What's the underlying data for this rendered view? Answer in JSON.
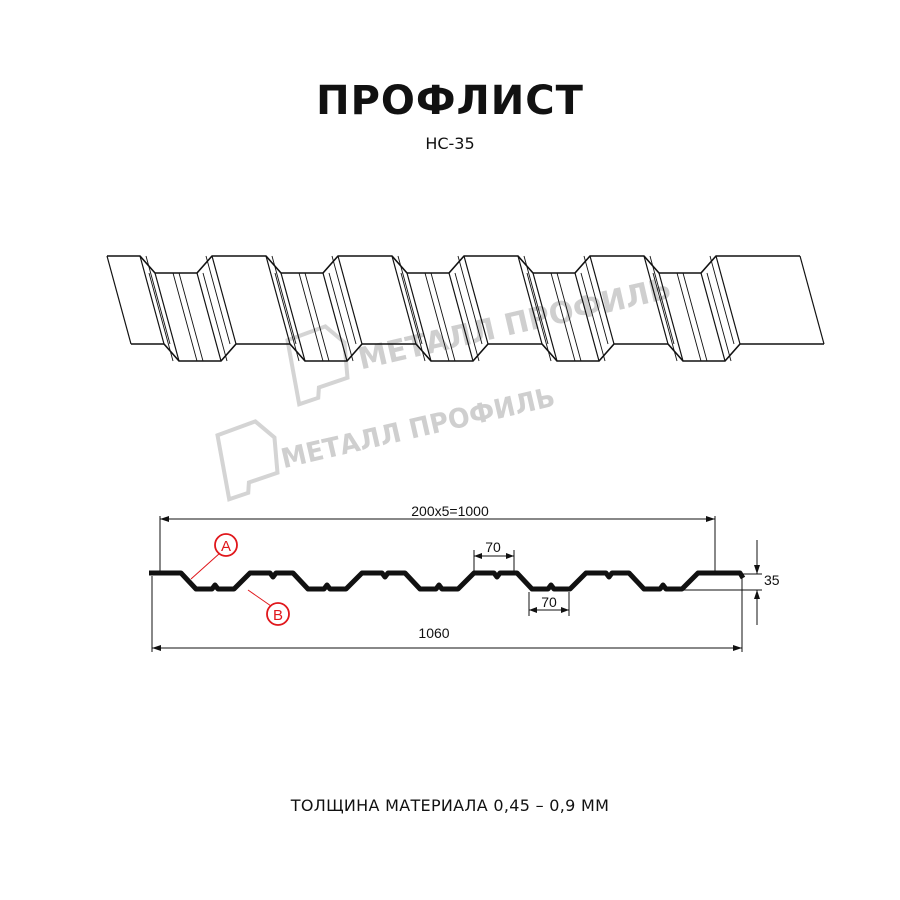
{
  "title": "ПРОФЛИСТ",
  "subtitle": "НС-35",
  "watermark": "МЕТАЛЛ ПРОФИЛЬ",
  "dimensions": {
    "pitch_total": "200x5=1000",
    "overall_width": "1060",
    "top_width": "70",
    "bottom_width": "70",
    "height": "35"
  },
  "markers": {
    "a": "A",
    "b": "B"
  },
  "colors": {
    "marker": "#e0161b",
    "line": "#111111",
    "watermark": "#cfcfcf"
  },
  "footer": "ТОЛЩИНА МАТЕРИАЛА 0,45 – 0,9 ММ"
}
